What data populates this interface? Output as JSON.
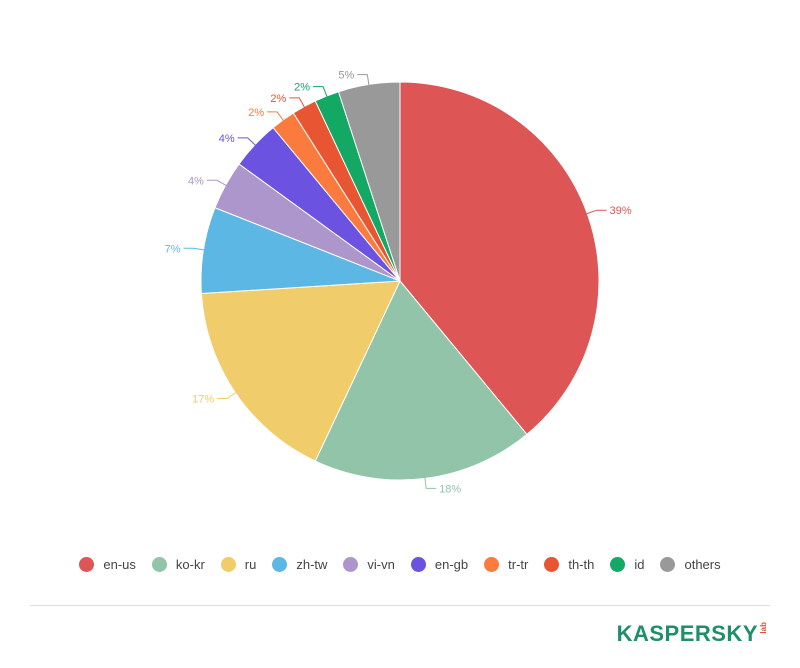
{
  "chart_data": {
    "type": "pie",
    "categories": [
      "en-us",
      "ko-kr",
      "ru",
      "zh-tw",
      "vi-vn",
      "en-gb",
      "tr-tr",
      "th-th",
      "id",
      "others"
    ],
    "values": [
      39,
      18,
      17,
      7,
      4,
      4,
      2,
      2,
      2,
      5
    ],
    "labels": [
      "39%",
      "18%",
      "17%",
      "7%",
      "4%",
      "4%",
      "2%",
      "2%",
      "2%",
      "5%"
    ],
    "colors": [
      "#dd5555",
      "#91c4a8",
      "#f0cc6a",
      "#5db7e5",
      "#ac96cc",
      "#6b52e0",
      "#fb7a3e",
      "#e85532",
      "#13a864",
      "#999999"
    ],
    "legend_placement": "bottom",
    "start": "top, clockwise"
  },
  "legend": {
    "items": [
      "en-us",
      "ko-kr",
      "ru",
      "zh-tw",
      "vi-vn",
      "en-gb",
      "tr-tr",
      "th-th",
      "id",
      "others"
    ]
  },
  "footer": {
    "logo_text": "KASPERSKY",
    "logo_sub": "lab"
  }
}
